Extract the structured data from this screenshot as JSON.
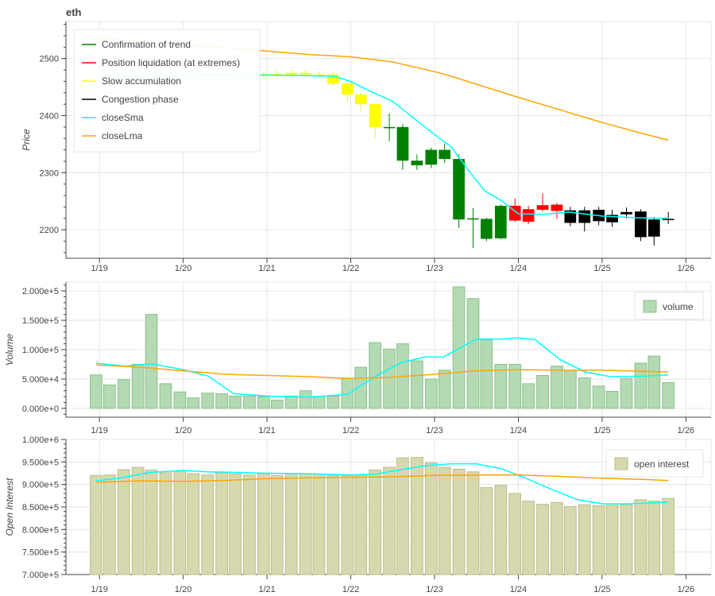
{
  "title": "eth",
  "colors": {
    "up": "#008000",
    "trend": "#008000",
    "liquidation": "#ff0000",
    "accumulation": "#ffff00",
    "congestion": "#000000",
    "closeSma": "#00ffff",
    "closeLma": "#ffa500",
    "volume_fill": "#b3dab3",
    "volume_edge": "#8cc08c",
    "oi_fill": "#d6d9ae",
    "oi_edge": "#b9bd8a",
    "grid": "#e6e6e6"
  },
  "chart_data": [
    {
      "type": "candlestick",
      "title": "eth",
      "ylabel": "Price",
      "ylim": [
        2150,
        2565
      ],
      "yticks": [
        "2200",
        "2300",
        "2400",
        "2500"
      ],
      "yticks_values": [
        2200,
        2300,
        2400,
        2500
      ],
      "xticks": [
        "1/19",
        "1/20",
        "1/21",
        "1/22",
        "1/23",
        "1/24",
        "1/25",
        "1/26"
      ],
      "legend": {
        "placement": "top-left",
        "entries": [
          {
            "label": "Confirmation of trend",
            "color": "#008000"
          },
          {
            "label": "Position liquidation (at extremes)",
            "color": "#ff0000"
          },
          {
            "label": "Slow accumulation",
            "color": "#ffff00"
          },
          {
            "label": "Congestion phase",
            "color": "#000000"
          },
          {
            "label": "closeSma",
            "color": "#00ffff"
          },
          {
            "label": "closeLma",
            "color": "#ffa500"
          }
        ]
      },
      "candles": [
        {
          "t": 18.96,
          "o": 2470,
          "c": 2468,
          "h": 2474,
          "l": 2462,
          "phase": "accumulation"
        },
        {
          "t": 19.12,
          "o": 2471,
          "c": 2469,
          "h": 2476,
          "l": 2464,
          "phase": "accumulation"
        },
        {
          "t": 19.29,
          "o": 2470,
          "c": 2472,
          "h": 2477,
          "l": 2466,
          "phase": "accumulation"
        },
        {
          "t": 19.46,
          "o": 2472,
          "c": 2470,
          "h": 2478,
          "l": 2465,
          "phase": "accumulation"
        },
        {
          "t": 19.62,
          "o": 2470,
          "c": 2473,
          "h": 2478,
          "l": 2466,
          "phase": "accumulation"
        },
        {
          "t": 19.79,
          "o": 2473,
          "c": 2471,
          "h": 2479,
          "l": 2467,
          "phase": "accumulation"
        },
        {
          "t": 19.96,
          "o": 2471,
          "c": 2472,
          "h": 2477,
          "l": 2466,
          "phase": "accumulation"
        },
        {
          "t": 20.12,
          "o": 2472,
          "c": 2470,
          "h": 2476,
          "l": 2465,
          "phase": "accumulation"
        },
        {
          "t": 20.29,
          "o": 2470,
          "c": 2473,
          "h": 2478,
          "l": 2466,
          "phase": "accumulation"
        },
        {
          "t": 20.46,
          "o": 2473,
          "c": 2471,
          "h": 2478,
          "l": 2467,
          "phase": "accumulation"
        },
        {
          "t": 20.62,
          "o": 2471,
          "c": 2472,
          "h": 2477,
          "l": 2466,
          "phase": "accumulation"
        },
        {
          "t": 20.79,
          "o": 2472,
          "c": 2470,
          "h": 2476,
          "l": 2464,
          "phase": "accumulation"
        },
        {
          "t": 20.96,
          "o": 2470,
          "c": 2473,
          "h": 2478,
          "l": 2466,
          "phase": "accumulation"
        },
        {
          "t": 21.12,
          "o": 2473,
          "c": 2471,
          "h": 2479,
          "l": 2467,
          "phase": "accumulation"
        },
        {
          "t": 21.29,
          "o": 2471,
          "c": 2475,
          "h": 2479,
          "l": 2467,
          "phase": "accumulation"
        },
        {
          "t": 21.46,
          "o": 2475,
          "c": 2472,
          "h": 2480,
          "l": 2468,
          "phase": "accumulation"
        },
        {
          "t": 21.62,
          "o": 2472,
          "c": 2470,
          "h": 2477,
          "l": 2466,
          "phase": "accumulation"
        },
        {
          "t": 21.79,
          "o": 2472,
          "c": 2456,
          "h": 2476,
          "l": 2452,
          "phase": "accumulation"
        },
        {
          "t": 21.96,
          "o": 2456,
          "c": 2437,
          "h": 2461,
          "l": 2424,
          "phase": "accumulation"
        },
        {
          "t": 22.12,
          "o": 2437,
          "c": 2420,
          "h": 2440,
          "l": 2407,
          "phase": "accumulation"
        },
        {
          "t": 22.29,
          "o": 2420,
          "c": 2380,
          "h": 2422,
          "l": 2362,
          "phase": "accumulation"
        },
        {
          "t": 22.46,
          "o": 2380,
          "c": 2380,
          "h": 2404,
          "l": 2355,
          "phase": "trend"
        },
        {
          "t": 22.62,
          "o": 2380,
          "c": 2321,
          "h": 2385,
          "l": 2305,
          "phase": "trend"
        },
        {
          "t": 22.79,
          "o": 2313,
          "c": 2321,
          "h": 2332,
          "l": 2305,
          "phase": "trend"
        },
        {
          "t": 22.96,
          "o": 2314,
          "c": 2340,
          "h": 2344,
          "l": 2308,
          "phase": "trend"
        },
        {
          "t": 23.12,
          "o": 2340,
          "c": 2324,
          "h": 2351,
          "l": 2317,
          "phase": "trend"
        },
        {
          "t": 23.29,
          "o": 2324,
          "c": 2218,
          "h": 2332,
          "l": 2203,
          "phase": "trend"
        },
        {
          "t": 23.46,
          "o": 2219,
          "c": 2220,
          "h": 2238,
          "l": 2168,
          "phase": "trend"
        },
        {
          "t": 23.62,
          "o": 2184,
          "c": 2219,
          "h": 2221,
          "l": 2180,
          "phase": "trend"
        },
        {
          "t": 23.79,
          "o": 2185,
          "c": 2242,
          "h": 2244,
          "l": 2183,
          "phase": "trend"
        },
        {
          "t": 23.96,
          "o": 2242,
          "c": 2216,
          "h": 2255,
          "l": 2214,
          "phase": "liquidation"
        },
        {
          "t": 24.12,
          "o": 2236,
          "c": 2214,
          "h": 2242,
          "l": 2210,
          "phase": "liquidation"
        },
        {
          "t": 24.29,
          "o": 2243,
          "c": 2235,
          "h": 2264,
          "l": 2232,
          "phase": "liquidation"
        },
        {
          "t": 24.46,
          "o": 2244,
          "c": 2233,
          "h": 2247,
          "l": 2219,
          "phase": "liquidation"
        },
        {
          "t": 24.62,
          "o": 2234,
          "c": 2212,
          "h": 2240,
          "l": 2206,
          "phase": "congestion"
        },
        {
          "t": 24.79,
          "o": 2234,
          "c": 2212,
          "h": 2240,
          "l": 2197,
          "phase": "congestion"
        },
        {
          "t": 24.96,
          "o": 2235,
          "c": 2215,
          "h": 2240,
          "l": 2208,
          "phase": "congestion"
        },
        {
          "t": 25.12,
          "o": 2226,
          "c": 2213,
          "h": 2235,
          "l": 2205,
          "phase": "congestion"
        },
        {
          "t": 25.29,
          "o": 2231,
          "c": 2227,
          "h": 2239,
          "l": 2220,
          "phase": "congestion"
        },
        {
          "t": 25.46,
          "o": 2232,
          "c": 2187,
          "h": 2236,
          "l": 2180,
          "phase": "congestion"
        },
        {
          "t": 25.62,
          "o": 2218,
          "c": 2188,
          "h": 2222,
          "l": 2172,
          "phase": "congestion"
        },
        {
          "t": 25.79,
          "o": 2218,
          "c": 2219,
          "h": 2231,
          "l": 2210,
          "phase": "congestion"
        }
      ],
      "lines": [
        {
          "name": "closeSma",
          "x": [
            18.96,
            19.5,
            20.0,
            20.5,
            21.0,
            21.5,
            21.8,
            22.0,
            22.2,
            22.5,
            22.8,
            23.0,
            23.2,
            23.4,
            23.6,
            23.8,
            24.0,
            24.3,
            24.6,
            25.0,
            25.4,
            25.79
          ],
          "y": [
            2469,
            2470,
            2471,
            2471,
            2471,
            2470,
            2469,
            2460,
            2445,
            2425,
            2390,
            2367,
            2345,
            2305,
            2268,
            2251,
            2228,
            2227,
            2231,
            2224,
            2221,
            2220
          ]
        },
        {
          "name": "closeLma",
          "x": [
            18.96,
            19.5,
            20.0,
            20.5,
            21.0,
            21.5,
            22.0,
            22.5,
            23.0,
            23.2,
            23.5,
            24.0,
            24.5,
            25.0,
            25.5,
            25.79
          ],
          "y": [
            2536,
            2530,
            2524,
            2519,
            2513,
            2507,
            2503,
            2494,
            2477,
            2469,
            2455,
            2432,
            2410,
            2388,
            2368,
            2357
          ]
        }
      ]
    },
    {
      "type": "bar",
      "ylabel": "Volume",
      "ylim": [
        -15000,
        215000
      ],
      "yticks": [
        "0.000e+0",
        "5.000e+4",
        "1.000e+5",
        "1.500e+5",
        "2.000e+5"
      ],
      "yticks_values": [
        0,
        50000,
        100000,
        150000,
        200000
      ],
      "xticks": [
        "1/19",
        "1/20",
        "1/21",
        "1/22",
        "1/23",
        "1/24",
        "1/25",
        "1/26"
      ],
      "legend": {
        "placement": "top-right",
        "entries": [
          {
            "label": "volume",
            "color": "#b3dab3"
          }
        ]
      },
      "x": [
        18.96,
        19.12,
        19.29,
        19.46,
        19.62,
        19.79,
        19.96,
        20.12,
        20.29,
        20.46,
        20.62,
        20.79,
        20.96,
        21.12,
        21.29,
        21.46,
        21.62,
        21.79,
        21.96,
        22.12,
        22.29,
        22.46,
        22.62,
        22.79,
        22.96,
        23.12,
        23.29,
        23.46,
        23.62,
        23.79,
        23.96,
        24.12,
        24.29,
        24.46,
        24.62,
        24.79,
        24.96,
        25.12,
        25.29,
        25.46,
        25.62,
        25.79
      ],
      "values": [
        57000,
        40000,
        49000,
        75000,
        160000,
        42000,
        28000,
        18000,
        26000,
        25000,
        21000,
        21000,
        20000,
        14000,
        21000,
        30000,
        20000,
        21000,
        51000,
        70000,
        112000,
        101000,
        110000,
        81000,
        50000,
        65000,
        207000,
        187000,
        117000,
        75000,
        75000,
        42000,
        56000,
        72000,
        65000,
        52000,
        38000,
        29000,
        51000,
        77000,
        89000,
        44000
      ],
      "lines": [
        {
          "name": "closeSma",
          "x": [
            18.96,
            19.3,
            19.62,
            20.0,
            20.3,
            20.6,
            21.0,
            21.5,
            21.96,
            22.3,
            22.6,
            22.9,
            23.1,
            23.5,
            23.8,
            24.0,
            24.2,
            24.5,
            24.8,
            25.1,
            25.5,
            25.79
          ],
          "y": [
            77000,
            72000,
            76000,
            66000,
            55000,
            25000,
            21000,
            19000,
            24000,
            55000,
            78000,
            88000,
            87000,
            118000,
            118000,
            120000,
            117000,
            83000,
            62000,
            54000,
            55000,
            57000
          ]
        },
        {
          "name": "closeLma",
          "x": [
            18.96,
            19.5,
            20.0,
            20.5,
            21.0,
            21.5,
            22.0,
            22.5,
            23.0,
            23.5,
            24.0,
            24.5,
            25.0,
            25.5,
            25.79
          ],
          "y": [
            74000,
            70000,
            64000,
            58000,
            56000,
            54000,
            51000,
            53000,
            58000,
            64000,
            66000,
            65000,
            65000,
            63000,
            62000
          ]
        }
      ]
    },
    {
      "type": "bar",
      "ylabel": "Open Interest",
      "ylim": [
        700000,
        1000000
      ],
      "yticks": [
        "7.000e+5",
        "7.500e+5",
        "8.000e+5",
        "8.500e+5",
        "9.000e+5",
        "9.500e+5",
        "1.000e+6"
      ],
      "yticks_values": [
        700000,
        750000,
        800000,
        850000,
        900000,
        950000,
        1000000
      ],
      "xticks": [
        "1/19",
        "1/20",
        "1/21",
        "1/22",
        "1/23",
        "1/24",
        "1/25",
        "1/26"
      ],
      "legend": {
        "placement": "top-right",
        "entries": [
          {
            "label": "open interest",
            "color": "#d6d9ae"
          }
        ]
      },
      "x": [
        18.96,
        19.12,
        19.29,
        19.46,
        19.62,
        19.79,
        19.96,
        20.12,
        20.29,
        20.46,
        20.62,
        20.79,
        20.96,
        21.12,
        21.29,
        21.46,
        21.62,
        21.79,
        21.96,
        22.12,
        22.29,
        22.46,
        22.62,
        22.79,
        22.96,
        23.12,
        23.29,
        23.46,
        23.62,
        23.79,
        23.96,
        24.12,
        24.29,
        24.46,
        24.62,
        24.79,
        24.96,
        25.12,
        25.29,
        25.46,
        25.62,
        25.79
      ],
      "values": [
        920000,
        921000,
        933000,
        938000,
        932000,
        926000,
        930000,
        924000,
        921000,
        926000,
        924000,
        921000,
        924000,
        920000,
        925000,
        924000,
        923000,
        920000,
        920000,
        921000,
        932000,
        938000,
        959000,
        960000,
        948000,
        938000,
        934000,
        928000,
        893000,
        898000,
        880000,
        863000,
        856000,
        860000,
        851000,
        855000,
        853000,
        854000,
        855000,
        866000,
        863000,
        869000
      ],
      "lines": [
        {
          "name": "closeSma",
          "x": [
            18.96,
            19.3,
            19.6,
            20.0,
            20.3,
            20.6,
            21.0,
            21.5,
            22.0,
            22.3,
            22.6,
            22.9,
            23.2,
            23.5,
            23.8,
            24.1,
            24.4,
            24.7,
            25.0,
            25.3,
            25.6,
            25.79
          ],
          "y": [
            908000,
            916000,
            927000,
            931000,
            928000,
            927000,
            925000,
            924000,
            921000,
            923000,
            933000,
            942000,
            946000,
            946000,
            935000,
            913000,
            889000,
            867000,
            857000,
            857000,
            859000,
            861000
          ]
        },
        {
          "name": "closeLma",
          "x": [
            18.96,
            19.5,
            20.0,
            20.5,
            21.0,
            21.5,
            22.0,
            22.5,
            23.0,
            23.5,
            24.0,
            24.5,
            25.0,
            25.5,
            25.79
          ],
          "y": [
            905000,
            908000,
            907000,
            909000,
            913000,
            915000,
            916000,
            917000,
            920000,
            921000,
            921000,
            918000,
            914000,
            911000,
            909000
          ]
        }
      ]
    }
  ]
}
